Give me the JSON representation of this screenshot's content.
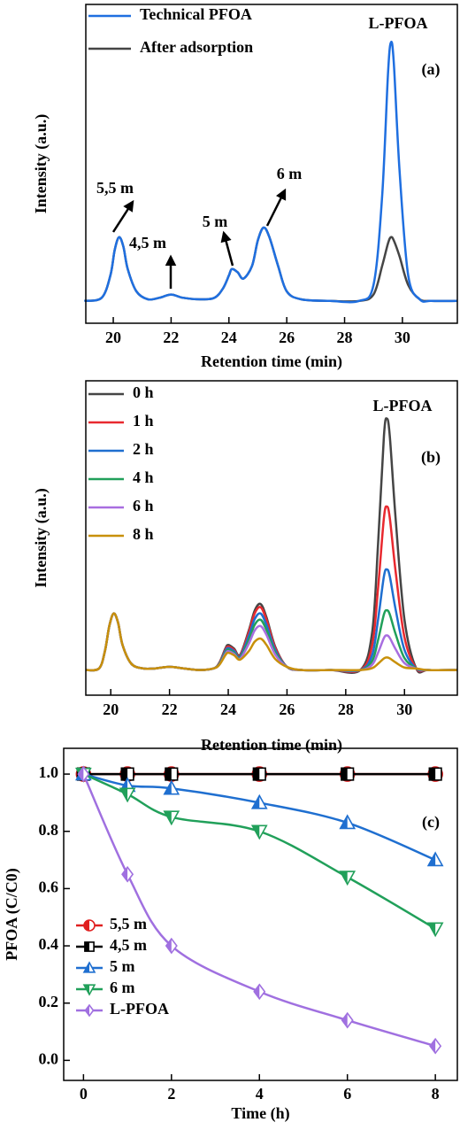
{
  "chart_data": [
    {
      "type": "line",
      "panel_label": "(a)",
      "xlabel": "Retention time (min)",
      "ylabel": "Intensity (a.u.)",
      "xlim": [
        19.05,
        31.9
      ],
      "ylim": [
        0,
        100
      ],
      "xticks": [
        20,
        22,
        24,
        26,
        28,
        30
      ],
      "x": [
        19,
        19.6,
        19.9,
        20.05,
        20.2,
        20.35,
        20.5,
        20.8,
        21.2,
        21.6,
        22.0,
        22.4,
        23.0,
        23.5,
        23.8,
        24.0,
        24.1,
        24.3,
        24.5,
        24.8,
        25.0,
        25.2,
        25.4,
        25.7,
        26.0,
        26.5,
        27.5,
        28.5,
        29.0,
        29.3,
        29.5,
        29.6,
        29.7,
        29.9,
        30.2,
        30.6,
        31.0,
        31.9
      ],
      "series": [
        {
          "name": "Technical PFOA",
          "color": "#1f6fe0",
          "values": [
            7,
            8,
            15,
            23,
            27,
            24,
            17,
            10,
            7.5,
            8,
            9,
            8,
            7.5,
            8,
            11,
            15,
            17,
            16,
            14,
            18,
            26,
            30,
            27,
            18,
            10,
            7.5,
            7,
            7,
            12,
            40,
            78,
            88,
            82,
            48,
            15,
            7.5,
            7,
            7
          ]
        },
        {
          "name": "After adsorption",
          "color": "#454545",
          "values": [
            7,
            8,
            15,
            23,
            27,
            24,
            17,
            10,
            7.5,
            8,
            9,
            8,
            7.5,
            8,
            11,
            15,
            17,
            16,
            14,
            18,
            26,
            30,
            27,
            18,
            10,
            7.5,
            7,
            7,
            9,
            18,
            25,
            27,
            26,
            21,
            12,
            7.5,
            7,
            7
          ]
        }
      ],
      "annotations": [
        "L-PFOA",
        "5,5 m",
        "4,5 m",
        "5 m",
        "6 m"
      ]
    },
    {
      "type": "line",
      "panel_label": "(b)",
      "xlabel": "Retention time (min)",
      "ylabel": "Intensity (a.u.)",
      "xlim": [
        19.15,
        31.8
      ],
      "ylim": [
        0,
        100
      ],
      "xticks": [
        20,
        22,
        24,
        26,
        28,
        30
      ],
      "x": [
        19.15,
        19.6,
        19.8,
        19.95,
        20.1,
        20.25,
        20.4,
        20.7,
        21.1,
        21.5,
        22.0,
        22.5,
        23.0,
        23.5,
        23.7,
        23.9,
        24.0,
        24.2,
        24.4,
        24.7,
        24.9,
        25.1,
        25.3,
        25.6,
        26.0,
        26.5,
        27.5,
        28.5,
        28.9,
        29.1,
        29.3,
        29.4,
        29.5,
        29.7,
        30.0,
        30.4,
        30.8,
        31.8
      ],
      "series": [
        {
          "name": "0 h",
          "color": "#454545",
          "values": [
            8,
            8.5,
            14,
            22,
            26,
            23,
            16,
            10,
            8.5,
            8.5,
            9,
            8.5,
            8,
            8.5,
            10.4,
            14.8,
            16,
            14.8,
            12.8,
            20.6,
            26.9,
            29,
            24.8,
            15.4,
            9,
            8,
            8,
            8,
            20,
            48,
            82.4,
            88,
            82.4,
            56,
            24,
            8.5,
            8,
            8
          ]
        },
        {
          "name": "1 h",
          "color": "#e8292f",
          "values": [
            8,
            8.5,
            14,
            22,
            26,
            23,
            16,
            10,
            8.5,
            8.5,
            9,
            8.5,
            8,
            8.5,
            10.3,
            14.4,
            15.5,
            14.4,
            12.5,
            20,
            26,
            28,
            24,
            15,
            9,
            8,
            8,
            8,
            15.8,
            34,
            56.4,
            60,
            56.4,
            39.2,
            18.4,
            8.5,
            8,
            8
          ]
        },
        {
          "name": "2 h",
          "color": "#1f6fd0",
          "values": [
            8,
            8.5,
            14,
            22,
            26,
            23,
            16,
            10,
            8.5,
            8.5,
            9,
            8.5,
            8,
            8.5,
            10.1,
            14,
            15,
            14,
            12.2,
            18.8,
            24.2,
            26,
            22.4,
            14.3,
            9,
            8,
            8,
            8,
            12.8,
            24,
            37.8,
            40,
            37.8,
            27.2,
            14.4,
            8.5,
            8,
            8
          ]
        },
        {
          "name": "4 h",
          "color": "#21a05a",
          "values": [
            8,
            8.5,
            14,
            22,
            26,
            23,
            16,
            10,
            8.5,
            8.5,
            9,
            8.5,
            8,
            8.5,
            10,
            13.5,
            14.5,
            13.5,
            11.9,
            17.6,
            22.4,
            24,
            20.8,
            13.6,
            9,
            8,
            8,
            8,
            10.9,
            17.5,
            25.7,
            27,
            25.7,
            19.4,
            11.8,
            8.5,
            8,
            8
          ]
        },
        {
          "name": "6 h",
          "color": "#a86ee0",
          "values": [
            8,
            8.5,
            14,
            22,
            26,
            23,
            16,
            10,
            8.5,
            8.5,
            9,
            8.5,
            8,
            8.5,
            9.8,
            13.1,
            14,
            13.1,
            11.6,
            16.4,
            20.6,
            22,
            19.2,
            12.9,
            9,
            8,
            8,
            8,
            9.7,
            13.5,
            18.2,
            19,
            18.2,
            14.6,
            10.2,
            8.5,
            8,
            8
          ]
        },
        {
          "name": "8 h",
          "color": "#c8900a",
          "values": [
            8,
            8.5,
            14,
            22,
            26,
            23,
            16,
            10,
            8.5,
            8.5,
            9,
            8.5,
            8,
            8.5,
            9.7,
            12.7,
            13.5,
            12.7,
            11.3,
            14,
            17,
            18,
            16,
            11.5,
            9,
            8,
            8,
            8,
            8.6,
            10,
            11.7,
            12,
            11.7,
            10.4,
            8.8,
            8.5,
            8,
            8
          ]
        }
      ],
      "annotations": [
        "L-PFOA"
      ]
    },
    {
      "type": "line",
      "panel_label": "(c)",
      "xlabel": "Time (h)",
      "ylabel": "PFOA (C/C0)",
      "xlim": [
        -0.45,
        8.5
      ],
      "ylim": [
        -0.07,
        1.09
      ],
      "xticks": [
        0,
        2,
        4,
        6,
        8
      ],
      "yticks": [
        {
          "value": 0,
          "label": "0.0"
        },
        0.2,
        0.4,
        0.6,
        0.8,
        {
          "value": 1,
          "label": "1.0"
        }
      ],
      "x": [
        0,
        1,
        2,
        4,
        6,
        8
      ],
      "series": [
        {
          "name": "5,5 m",
          "color": "#e02020",
          "marker": "circle",
          "values": [
            1,
            1,
            1,
            1,
            1,
            1
          ]
        },
        {
          "name": "4,5 m",
          "color": "#000000",
          "marker": "square",
          "values": [
            1,
            1,
            1,
            1,
            1,
            1
          ]
        },
        {
          "name": "5 m",
          "color": "#1f6fd0",
          "marker": "triangle-up",
          "values": [
            1,
            0.96,
            0.95,
            0.9,
            0.83,
            0.7
          ]
        },
        {
          "name": "6 m",
          "color": "#21a05a",
          "marker": "triangle-down",
          "values": [
            1,
            0.93,
            0.85,
            0.8,
            0.64,
            0.46
          ]
        },
        {
          "name": "L-PFOA",
          "color": "#a070e0",
          "marker": "diamond",
          "values": [
            1,
            0.65,
            0.4,
            0.24,
            0.14,
            0.05
          ]
        }
      ]
    }
  ]
}
